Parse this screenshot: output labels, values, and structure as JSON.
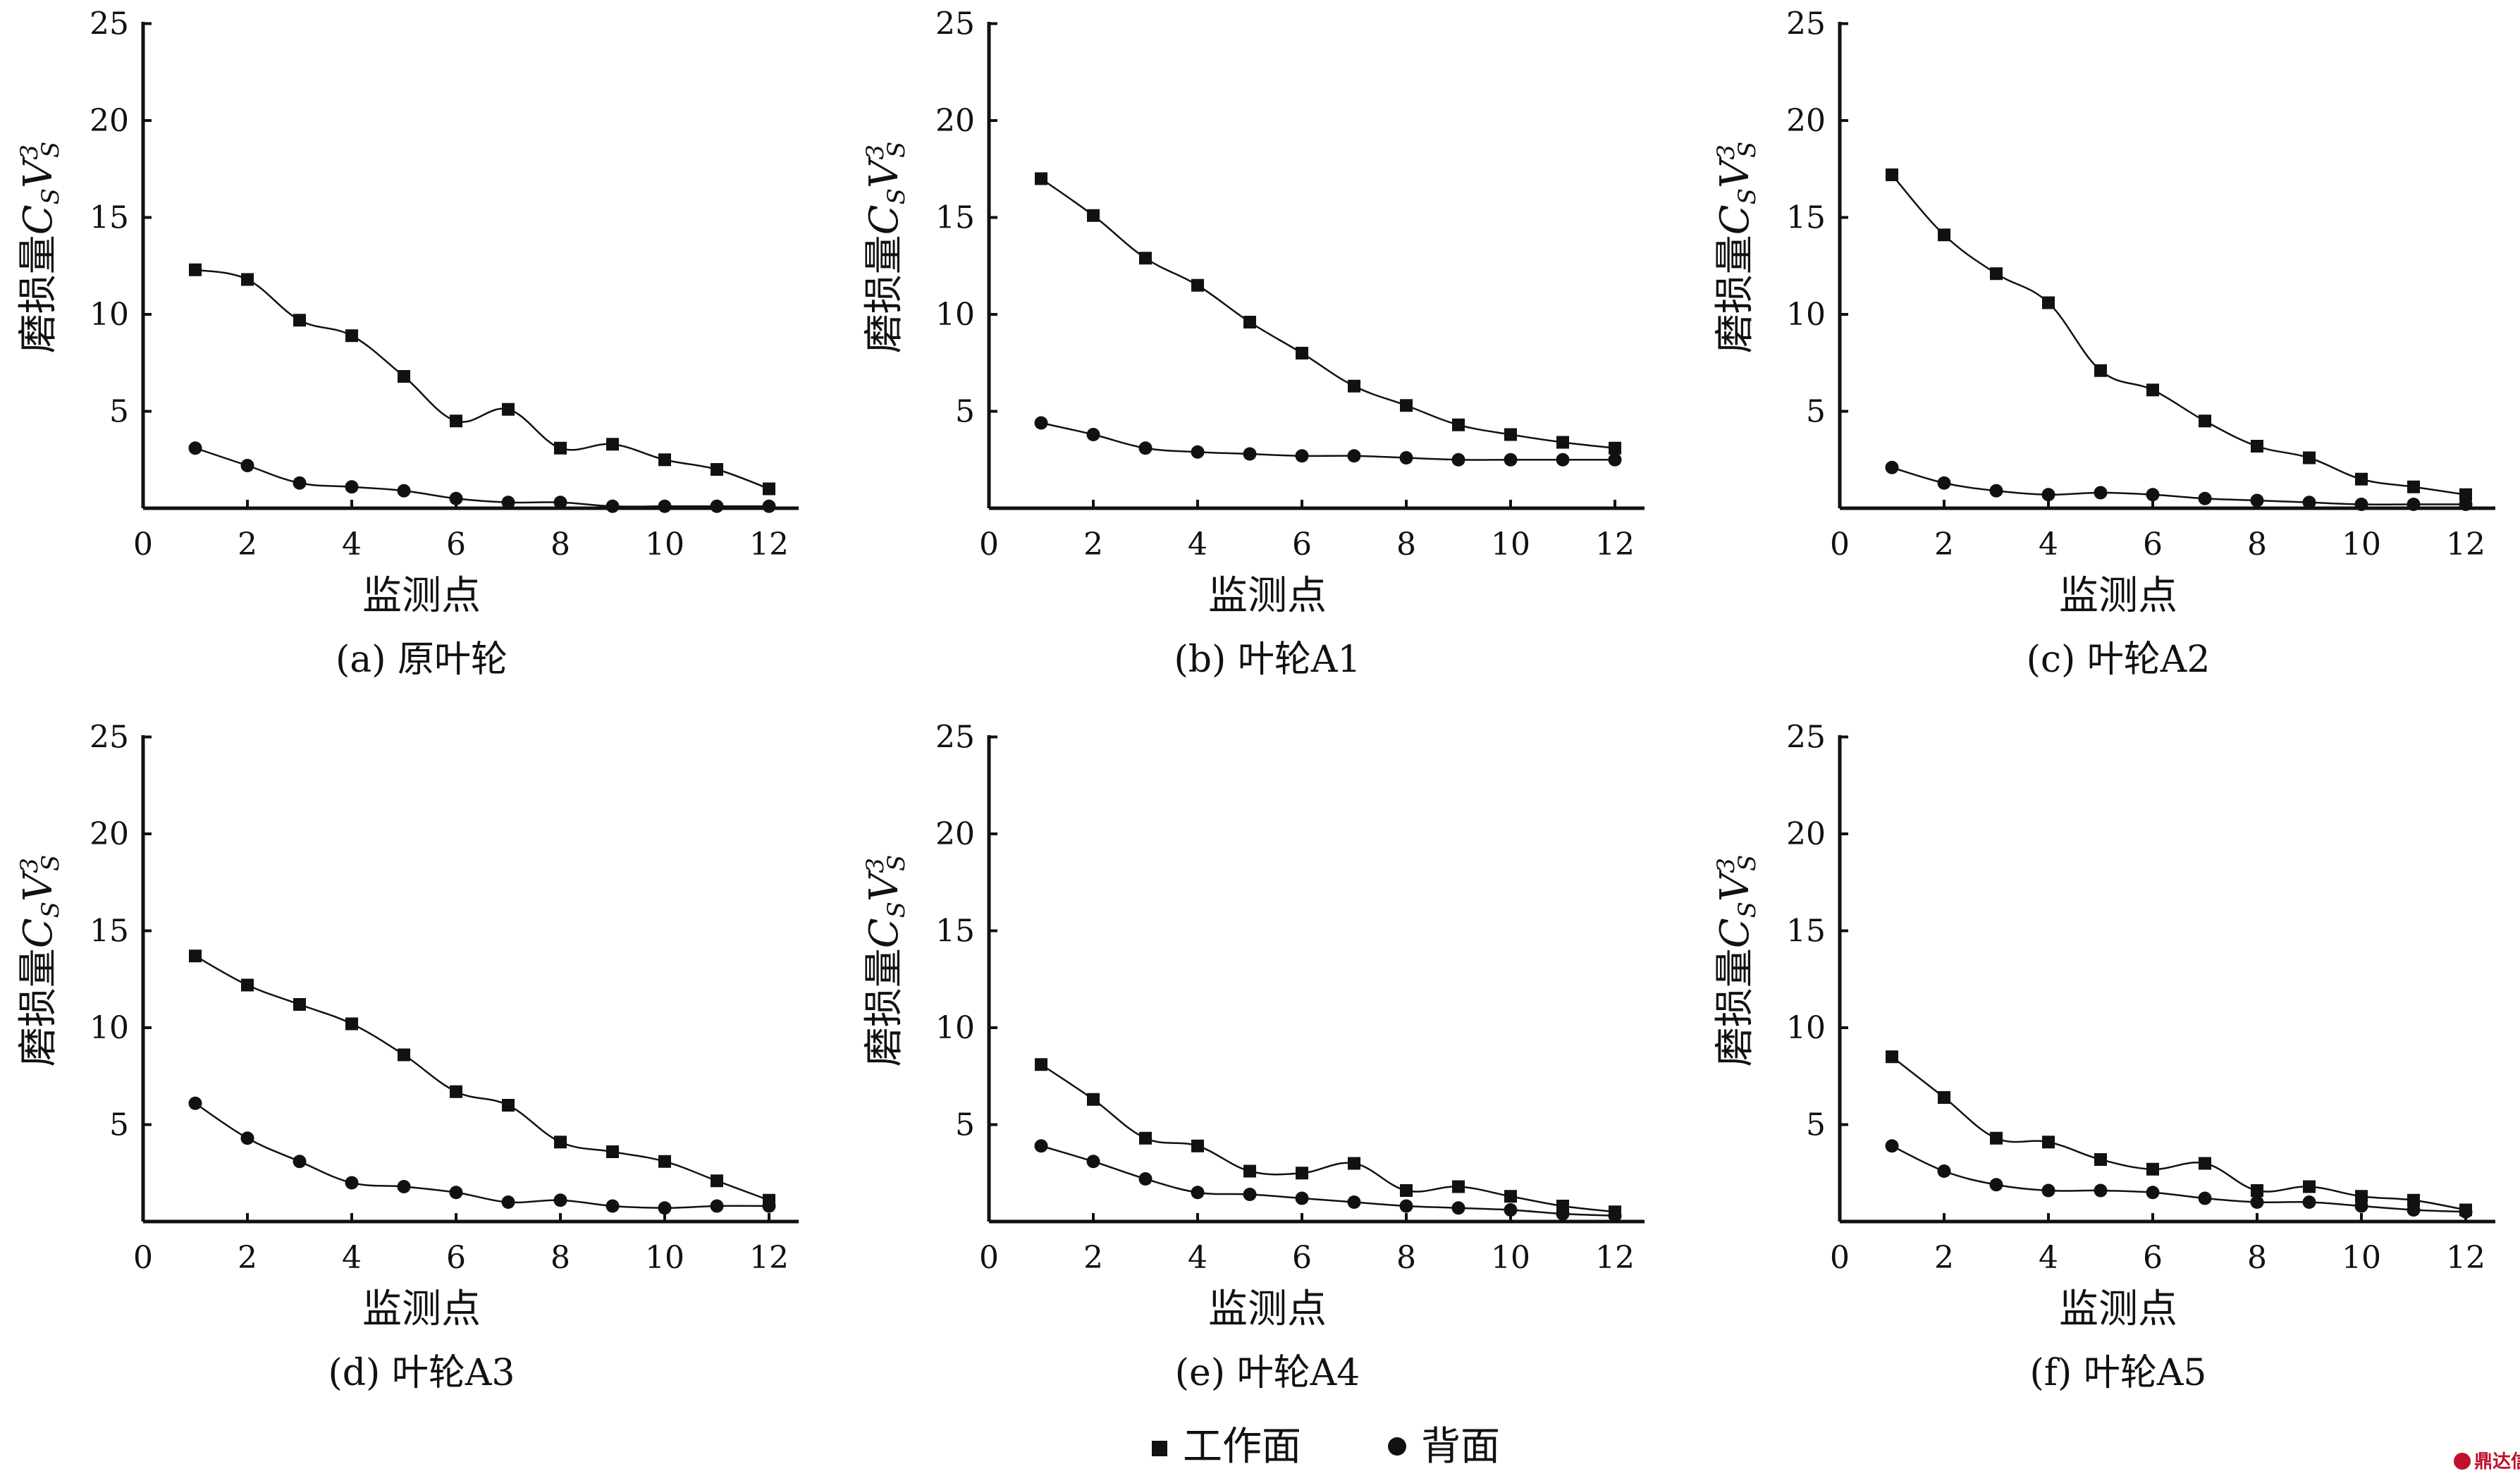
{
  "chart_data": [
    {
      "type": "line",
      "caption": "(a) 原叶轮",
      "xlabel": "监测点",
      "ylabel_text": "磨损量",
      "ylabel_math": "C_S V_S^3",
      "x": [
        1,
        2,
        3,
        4,
        5,
        6,
        7,
        8,
        9,
        10,
        11,
        12
      ],
      "xlim": [
        0,
        13
      ],
      "ylim": [
        0,
        25
      ],
      "xticks": [
        0,
        2,
        4,
        6,
        8,
        10,
        12
      ],
      "yticks": [
        5,
        10,
        15,
        20,
        25
      ],
      "series": [
        {
          "name": "工作面",
          "marker": "square",
          "values": [
            12.3,
            11.8,
            9.7,
            8.9,
            6.8,
            4.5,
            5.1,
            3.1,
            3.3,
            2.5,
            2.0,
            1.0
          ]
        },
        {
          "name": "背面",
          "marker": "circle",
          "values": [
            3.1,
            2.2,
            1.3,
            1.1,
            0.9,
            0.5,
            0.3,
            0.3,
            0.1,
            0.1,
            0.1,
            0.1
          ]
        }
      ]
    },
    {
      "type": "line",
      "caption": "(b) 叶轮A1",
      "xlabel": "监测点",
      "ylabel_text": "磨损量",
      "ylabel_math": "C_S V_S^3",
      "x": [
        1,
        2,
        3,
        4,
        5,
        6,
        7,
        8,
        9,
        10,
        11,
        12
      ],
      "xlim": [
        0,
        13
      ],
      "ylim": [
        0,
        25
      ],
      "xticks": [
        0,
        2,
        4,
        6,
        8,
        10,
        12
      ],
      "yticks": [
        5,
        10,
        15,
        20,
        25
      ],
      "series": [
        {
          "name": "工作面",
          "marker": "square",
          "values": [
            17.0,
            15.1,
            12.9,
            11.5,
            9.6,
            8.0,
            6.3,
            5.3,
            4.3,
            3.8,
            3.4,
            3.1
          ]
        },
        {
          "name": "背面",
          "marker": "circle",
          "values": [
            4.4,
            3.8,
            3.1,
            2.9,
            2.8,
            2.7,
            2.7,
            2.6,
            2.5,
            2.5,
            2.5,
            2.5
          ]
        }
      ]
    },
    {
      "type": "line",
      "caption": "(c) 叶轮A2",
      "xlabel": "监测点",
      "ylabel_text": "磨损量",
      "ylabel_math": "C_S V_S^3",
      "x": [
        1,
        2,
        3,
        4,
        5,
        6,
        7,
        8,
        9,
        10,
        11,
        12
      ],
      "xlim": [
        0,
        13
      ],
      "ylim": [
        0,
        25
      ],
      "xticks": [
        0,
        2,
        4,
        6,
        8,
        10,
        12
      ],
      "yticks": [
        5,
        10,
        15,
        20,
        25
      ],
      "series": [
        {
          "name": "工作面",
          "marker": "square",
          "values": [
            17.2,
            14.1,
            12.1,
            10.6,
            7.1,
            6.1,
            4.5,
            3.2,
            2.6,
            1.5,
            1.1,
            0.7
          ]
        },
        {
          "name": "背面",
          "marker": "circle",
          "values": [
            2.1,
            1.3,
            0.9,
            0.7,
            0.8,
            0.7,
            0.5,
            0.4,
            0.3,
            0.2,
            0.2,
            0.2
          ]
        }
      ]
    },
    {
      "type": "line",
      "caption": "(d) 叶轮A3",
      "xlabel": "监测点",
      "ylabel_text": "磨损量",
      "ylabel_math": "C_S V_S^3",
      "x": [
        1,
        2,
        3,
        4,
        5,
        6,
        7,
        8,
        9,
        10,
        11,
        12
      ],
      "xlim": [
        0,
        13
      ],
      "ylim": [
        0,
        25
      ],
      "xticks": [
        0,
        2,
        4,
        6,
        8,
        10,
        12
      ],
      "yticks": [
        5,
        10,
        15,
        20,
        25
      ],
      "series": [
        {
          "name": "工作面",
          "marker": "square",
          "values": [
            13.7,
            12.2,
            11.2,
            10.2,
            8.6,
            6.7,
            6.0,
            4.1,
            3.6,
            3.1,
            2.1,
            1.1
          ]
        },
        {
          "name": "背面",
          "marker": "circle",
          "values": [
            6.1,
            4.3,
            3.1,
            2.0,
            1.8,
            1.5,
            1.0,
            1.1,
            0.8,
            0.7,
            0.8,
            0.8
          ]
        }
      ]
    },
    {
      "type": "line",
      "caption": "(e) 叶轮A4",
      "xlabel": "监测点",
      "ylabel_text": "磨损量",
      "ylabel_math": "C_S V_S^3",
      "x": [
        1,
        2,
        3,
        4,
        5,
        6,
        7,
        8,
        9,
        10,
        11,
        12
      ],
      "xlim": [
        0,
        13
      ],
      "ylim": [
        0,
        25
      ],
      "xticks": [
        0,
        2,
        4,
        6,
        8,
        10,
        12
      ],
      "yticks": [
        5,
        10,
        15,
        20,
        25
      ],
      "series": [
        {
          "name": "工作面",
          "marker": "square",
          "values": [
            8.1,
            6.3,
            4.3,
            3.9,
            2.6,
            2.5,
            3.0,
            1.6,
            1.8,
            1.3,
            0.8,
            0.5
          ]
        },
        {
          "name": "背面",
          "marker": "circle",
          "values": [
            3.9,
            3.1,
            2.2,
            1.5,
            1.4,
            1.2,
            1.0,
            0.8,
            0.7,
            0.6,
            0.4,
            0.3
          ]
        }
      ]
    },
    {
      "type": "line",
      "caption": "(f) 叶轮A5",
      "xlabel": "监测点",
      "ylabel_text": "磨损量",
      "ylabel_math": "C_S V_S^3",
      "x": [
        1,
        2,
        3,
        4,
        5,
        6,
        7,
        8,
        9,
        10,
        11,
        12
      ],
      "xlim": [
        0,
        13
      ],
      "ylim": [
        0,
        25
      ],
      "xticks": [
        0,
        2,
        4,
        6,
        8,
        10,
        12
      ],
      "yticks": [
        5,
        10,
        15,
        20,
        25
      ],
      "series": [
        {
          "name": "工作面",
          "marker": "square",
          "values": [
            8.5,
            6.4,
            4.3,
            4.1,
            3.2,
            2.7,
            3.0,
            1.6,
            1.8,
            1.3,
            1.1,
            0.6
          ]
        },
        {
          "name": "背面",
          "marker": "circle",
          "values": [
            3.9,
            2.6,
            1.9,
            1.6,
            1.6,
            1.5,
            1.2,
            1.0,
            1.0,
            0.8,
            0.6,
            0.5
          ]
        }
      ]
    }
  ],
  "legend": [
    {
      "label": "工作面",
      "marker": "square"
    },
    {
      "label": "背面",
      "marker": "circle"
    }
  ],
  "watermark": "鼎达信"
}
